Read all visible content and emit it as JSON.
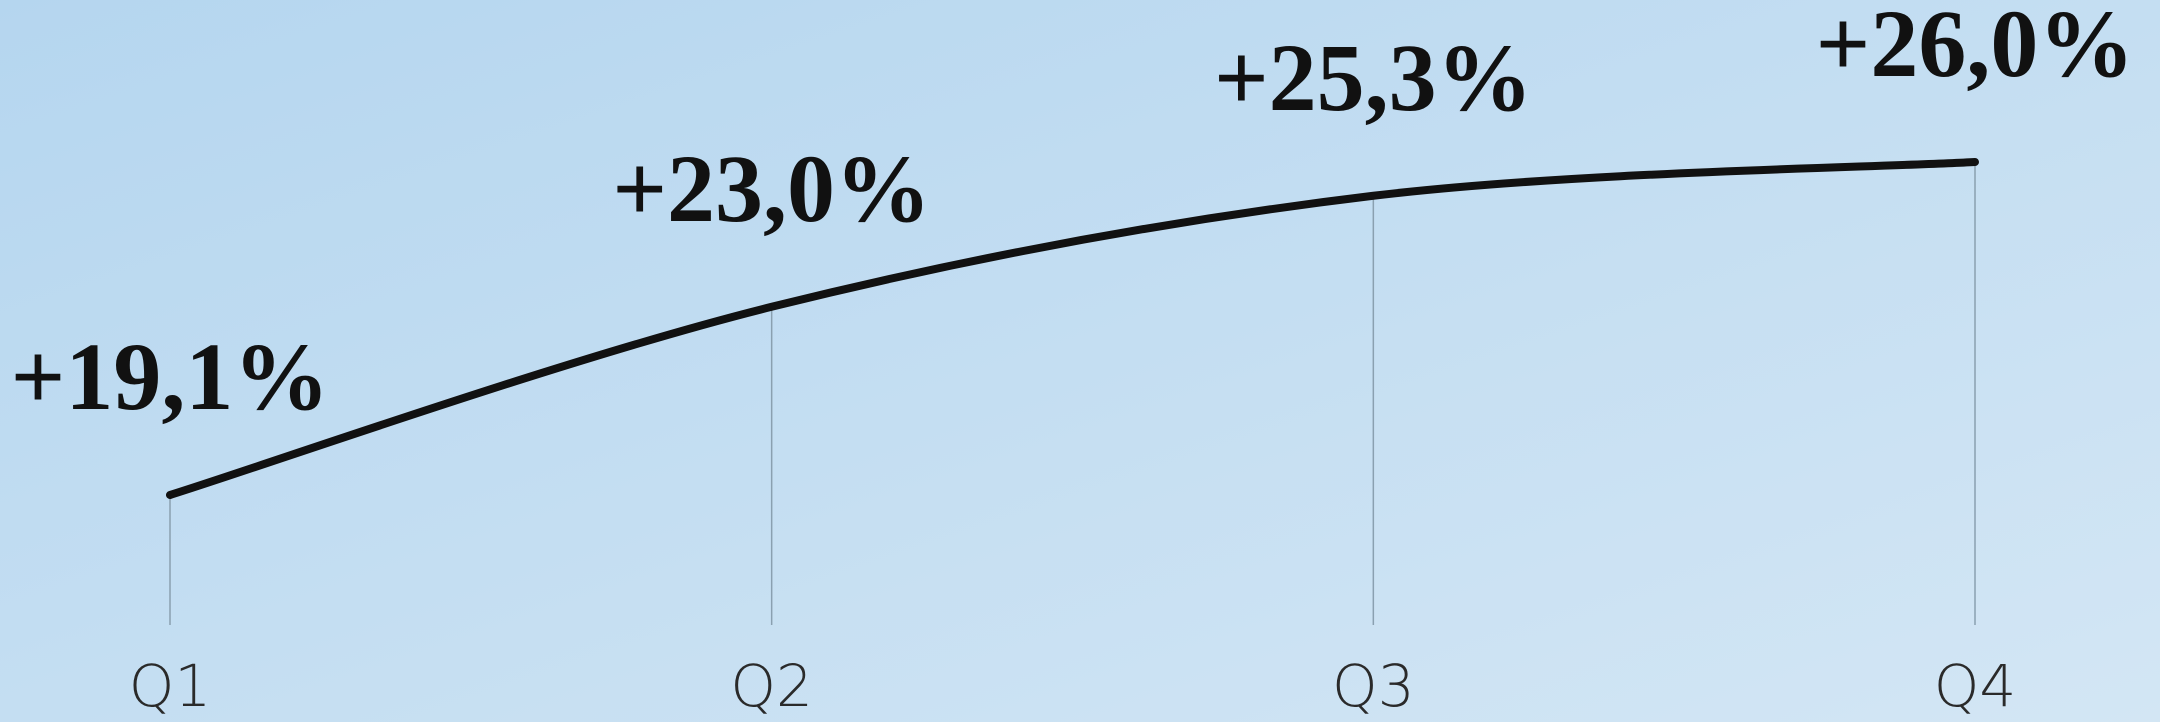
{
  "chart_data": {
    "type": "line",
    "categories": [
      "Q1",
      "Q2",
      "Q3",
      "Q4"
    ],
    "values": [
      19.1,
      23.0,
      25.3,
      26.0
    ],
    "value_labels": [
      "+19,1%",
      "+23,0%",
      "+25,3%",
      "+26,0%"
    ],
    "color": "#111111"
  }
}
